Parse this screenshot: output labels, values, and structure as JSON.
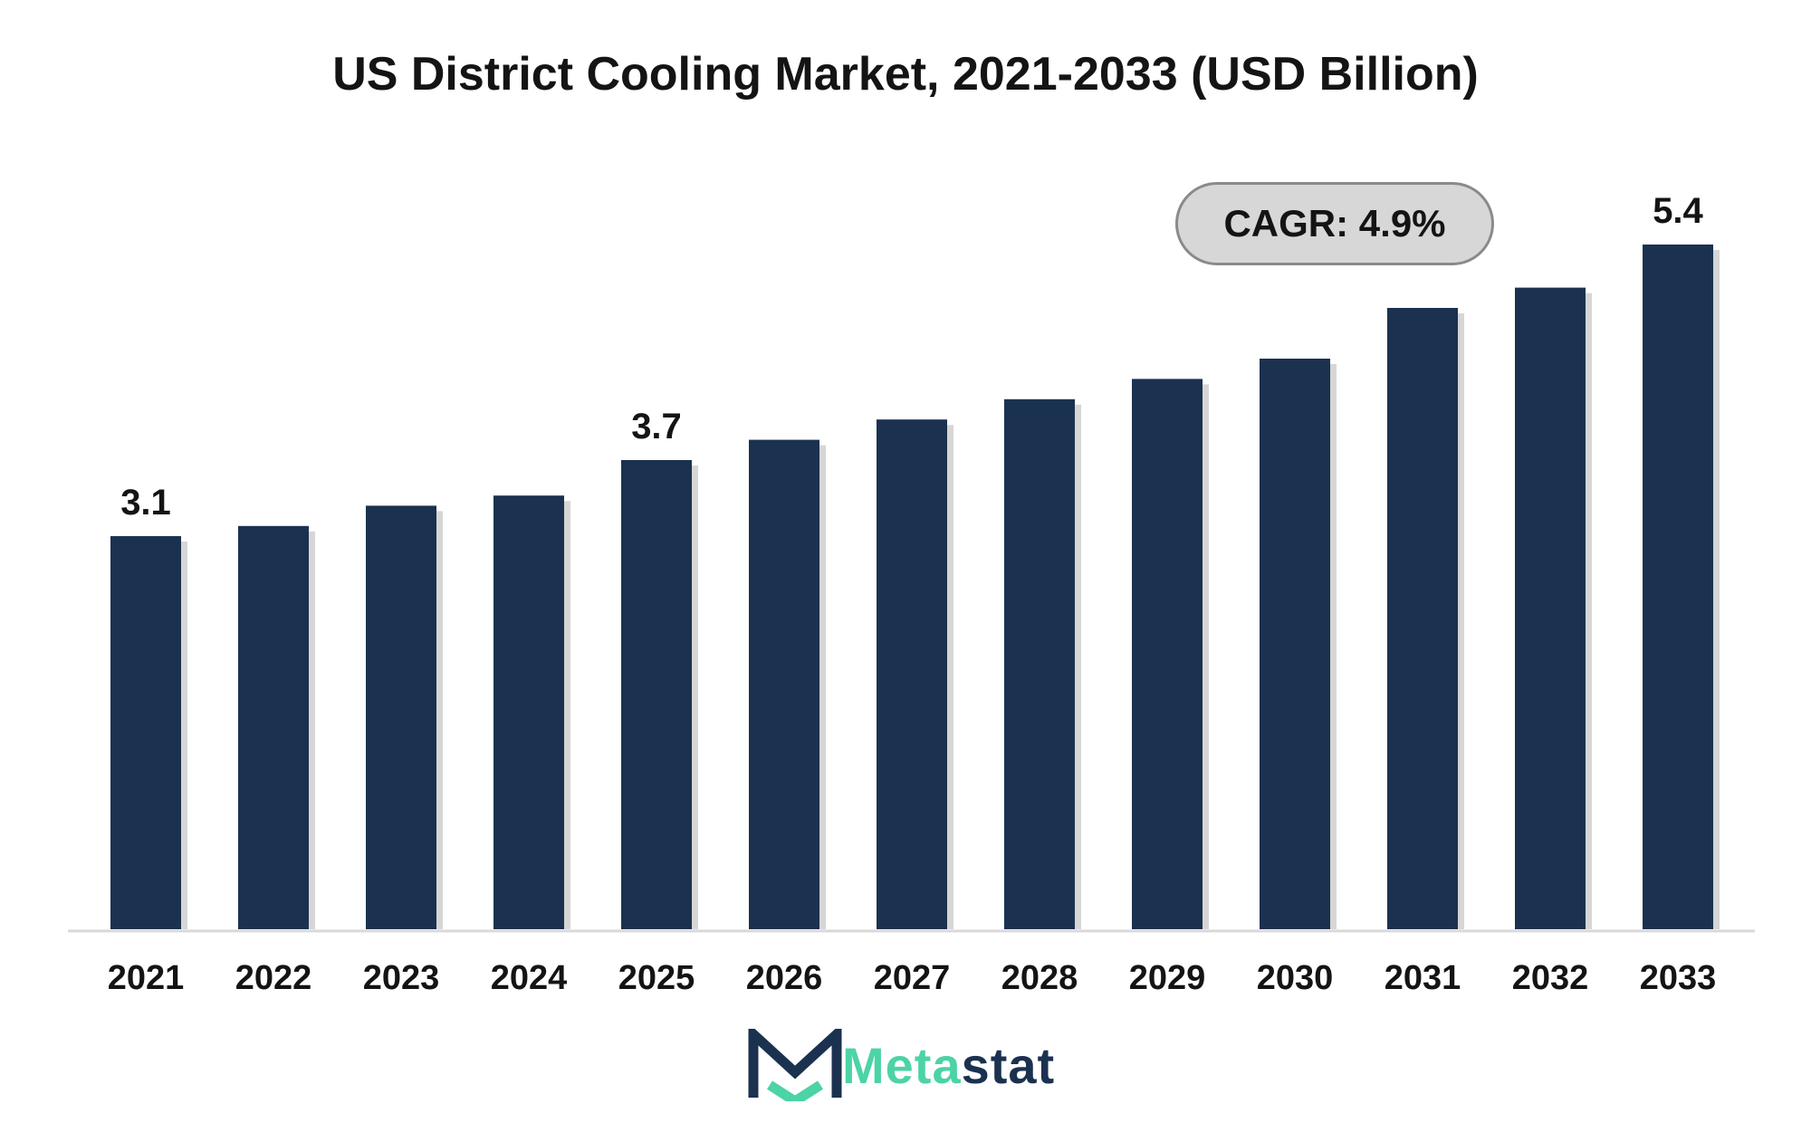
{
  "chart_data": {
    "type": "bar",
    "title": "US District Cooling Market, 2021-2033 (USD Billion)",
    "categories": [
      "2021",
      "2022",
      "2023",
      "2024",
      "2025",
      "2026",
      "2027",
      "2028",
      "2029",
      "2030",
      "2031",
      "2032",
      "2033"
    ],
    "values": [
      3.1,
      3.18,
      3.34,
      3.42,
      3.7,
      3.86,
      4.02,
      4.18,
      4.34,
      4.5,
      4.9,
      5.06,
      5.4
    ],
    "data_labels": [
      "3.1",
      "",
      "",
      "",
      "3.7",
      "",
      "",
      "",
      "",
      "",
      "",
      "",
      "5.4"
    ],
    "xlabel": "",
    "ylabel": "",
    "ylim": [
      0,
      5.9
    ],
    "grid": false,
    "legend": "none",
    "bar_color": "#1b3150"
  },
  "annotation": {
    "cagr_label": "CAGR: 4.9%"
  },
  "brand": {
    "name_part1": "Meta",
    "name_part2": "stat",
    "icon": "metastat-m-logo-icon",
    "colors": {
      "accent": "#4cd3a6",
      "dark": "#1b3150"
    }
  }
}
